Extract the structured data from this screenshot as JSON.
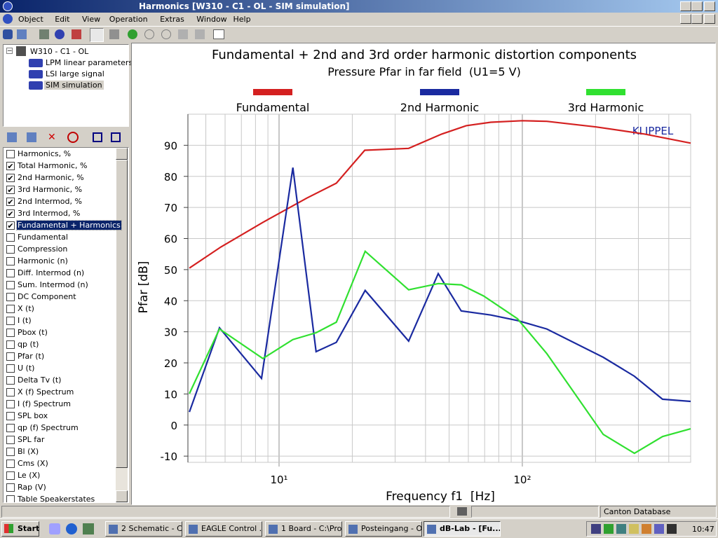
{
  "window": {
    "title": "Harmonics [W310 - C1 - OL - SIM simulation]"
  },
  "menu": [
    "Object",
    "Edit",
    "View",
    "Operation",
    "Extras",
    "Window",
    "Help"
  ],
  "tree": {
    "root": "W310 - C1 - OL",
    "items": [
      {
        "label": "LPM linear parameters",
        "selected": false
      },
      {
        "label": "LSI large signal",
        "selected": false
      },
      {
        "label": "SIM simulation",
        "selected": true
      }
    ]
  },
  "list": [
    {
      "label": "Harmonics, %",
      "checked": false,
      "selected": false
    },
    {
      "label": "Total Harmonic, %",
      "checked": true,
      "selected": false
    },
    {
      "label": "2nd Harmonic, %",
      "checked": true,
      "selected": false
    },
    {
      "label": "3rd Harmonic, %",
      "checked": true,
      "selected": false
    },
    {
      "label": "2nd Intermod, %",
      "checked": true,
      "selected": false
    },
    {
      "label": "3rd Intermod, %",
      "checked": true,
      "selected": false
    },
    {
      "label": "Fundamental + Harmonics",
      "checked": true,
      "selected": true
    },
    {
      "label": "Fundamental",
      "checked": false,
      "selected": false
    },
    {
      "label": "Compression",
      "checked": false,
      "selected": false
    },
    {
      "label": "Harmonic (n)",
      "checked": false,
      "selected": false
    },
    {
      "label": "Diff. Intermod (n)",
      "checked": false,
      "selected": false
    },
    {
      "label": "Sum. Intermod (n)",
      "checked": false,
      "selected": false
    },
    {
      "label": "DC Component",
      "checked": false,
      "selected": false
    },
    {
      "label": "X (t)",
      "checked": false,
      "selected": false
    },
    {
      "label": "I (t)",
      "checked": false,
      "selected": false
    },
    {
      "label": "Pbox (t)",
      "checked": false,
      "selected": false
    },
    {
      "label": "qp (t)",
      "checked": false,
      "selected": false
    },
    {
      "label": "Pfar (t)",
      "checked": false,
      "selected": false
    },
    {
      "label": "U (t)",
      "checked": false,
      "selected": false
    },
    {
      "label": "Delta Tv (t)",
      "checked": false,
      "selected": false
    },
    {
      "label": "X (f) Spectrum",
      "checked": false,
      "selected": false
    },
    {
      "label": "I (f) Spectrum",
      "checked": false,
      "selected": false
    },
    {
      "label": "SPL box",
      "checked": false,
      "selected": false
    },
    {
      "label": "qp (f) Spectrum",
      "checked": false,
      "selected": false
    },
    {
      "label": "SPL far",
      "checked": false,
      "selected": false
    },
    {
      "label": "Bl (X)",
      "checked": false,
      "selected": false
    },
    {
      "label": "Cms (X)",
      "checked": false,
      "selected": false
    },
    {
      "label": "Le (X)",
      "checked": false,
      "selected": false
    },
    {
      "label": "Rap (V)",
      "checked": false,
      "selected": false
    },
    {
      "label": "Table Speakerstates",
      "checked": false,
      "selected": false
    }
  ],
  "chart_data": {
    "type": "line",
    "title": "Fundamental + 2nd and 3rd order harmonic distortion components",
    "subtitle": "Pressure Pfar in far field  (U1=5 V)",
    "annotation": "KLIPPEL",
    "x_label": "Frequency f1  [Hz]",
    "y_label": "Pfar [dB]",
    "x_scale": "log",
    "grid": true,
    "xlim": [
      4.22,
      492
    ],
    "xticks": [
      {
        "value": 10,
        "label": "10¹"
      },
      {
        "value": 100,
        "label": "10²"
      }
    ],
    "xminorticks": [
      5,
      6,
      7,
      8,
      9,
      20,
      30,
      40,
      50,
      60,
      70,
      80,
      90,
      200,
      300,
      400
    ],
    "ylim": [
      -12,
      100
    ],
    "yticks": [
      -10,
      0,
      10,
      20,
      30,
      40,
      50,
      60,
      70,
      80,
      90
    ],
    "series": [
      {
        "name": "Fundamental",
        "color": "#d42020",
        "x": [
          4.28,
          5.77,
          8.58,
          13,
          17.2,
          22.5,
          34.1,
          46.6,
          58.8,
          74.2,
          100,
          126,
          201,
          319,
          492
        ],
        "values": [
          50.5,
          57.3,
          65.2,
          73,
          77.8,
          88.4,
          89,
          93.6,
          96.3,
          97.4,
          97.9,
          97.7,
          95.9,
          93.6,
          90.7
        ]
      },
      {
        "name": "2nd Harmonic",
        "color": "#1a2aa0",
        "x": [
          4.28,
          5.69,
          8.47,
          11.4,
          14.2,
          17.2,
          22.6,
          34.1,
          45.1,
          56.1,
          74.2,
          95.5,
          126,
          215,
          289,
          377,
          492
        ],
        "values": [
          4.2,
          31.3,
          15,
          82.8,
          23.6,
          26.6,
          43.3,
          27,
          48.7,
          36.7,
          35.4,
          33.6,
          30.9,
          21.8,
          15.7,
          8.3,
          7.6
        ]
      },
      {
        "name": "3rd Harmonic",
        "color": "#30e030",
        "x": [
          4.28,
          5.69,
          8.58,
          11.4,
          14.2,
          17.2,
          22.6,
          34.1,
          45.1,
          56.1,
          69.4,
          95.5,
          126,
          159,
          215,
          289,
          377,
          492
        ],
        "values": [
          10.1,
          30.9,
          21.4,
          27.5,
          29.7,
          33.1,
          55.9,
          43.5,
          45.5,
          45.1,
          41.5,
          34.2,
          23,
          11.7,
          -3,
          -9.1,
          -3.7,
          -1.2
        ]
      }
    ]
  },
  "status": {
    "database": "Canton Database"
  },
  "taskbar": {
    "start": "Start",
    "tasks": [
      {
        "label": "2 Schematic - C...",
        "active": false
      },
      {
        "label": "EAGLE Control ...",
        "active": false
      },
      {
        "label": "1 Board - C:\\Pro...",
        "active": false
      },
      {
        "label": "Posteingang - O...",
        "active": false
      },
      {
        "label": "dB-Lab - [Fu...",
        "active": true
      }
    ],
    "clock": "10:47"
  }
}
